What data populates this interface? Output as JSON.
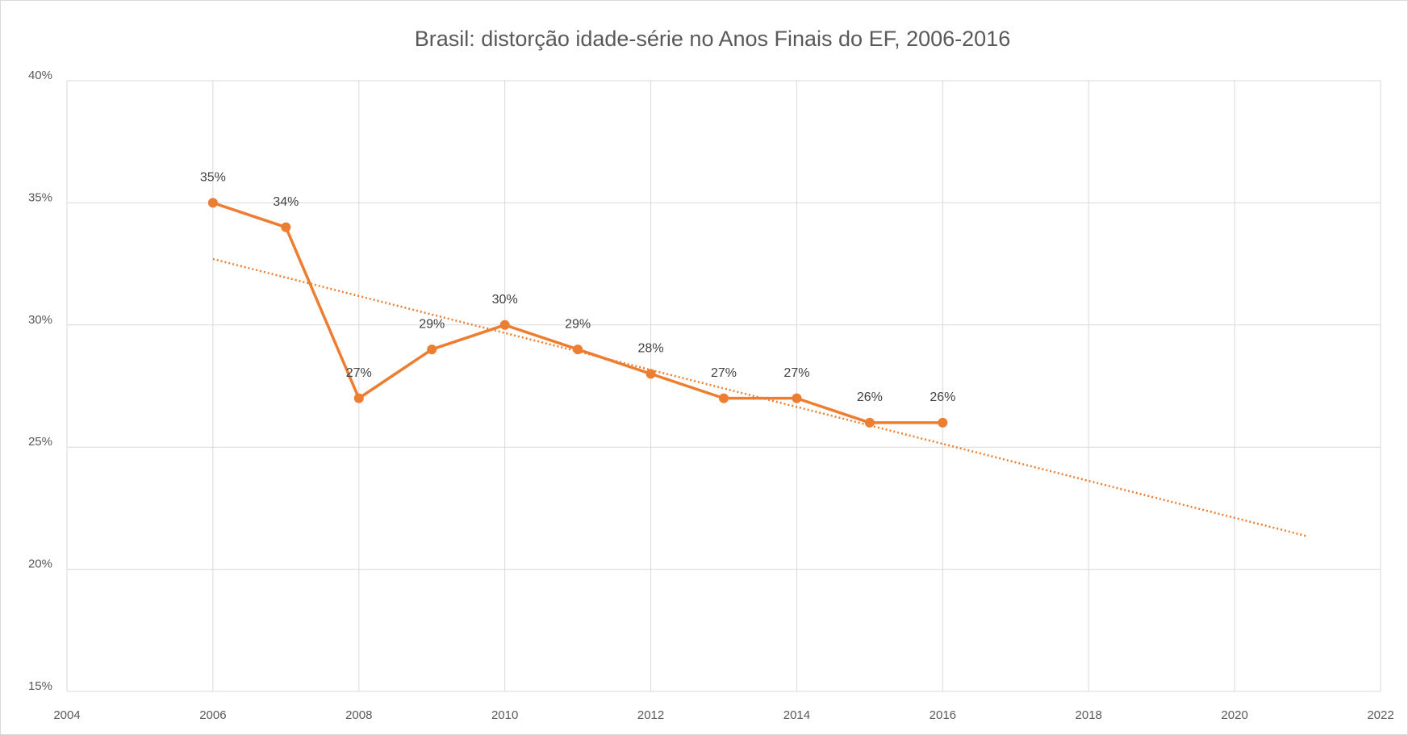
{
  "chart_data": {
    "type": "line",
    "title": "Brasil: distorção idade-série no Anos Finais do EF, 2006-2016",
    "x": [
      2006,
      2007,
      2008,
      2009,
      2010,
      2011,
      2012,
      2013,
      2014,
      2015,
      2016
    ],
    "values": [
      35,
      34,
      27,
      29,
      30,
      29,
      28,
      27,
      27,
      26,
      26
    ],
    "value_labels": [
      "35%",
      "34%",
      "27%",
      "29%",
      "30%",
      "29%",
      "28%",
      "27%",
      "27%",
      "26%",
      "26%"
    ],
    "color": "#ed7d31",
    "trendline": {
      "x": [
        2006,
        2021
      ],
      "values": [
        32.7,
        21.35
      ],
      "style": "dotted"
    },
    "xlim": [
      2004,
      2022
    ],
    "xticks": [
      2004,
      2006,
      2008,
      2010,
      2012,
      2014,
      2016,
      2018,
      2020,
      2022
    ],
    "ylim": [
      15,
      40
    ],
    "yticks": [
      {
        "value": 15,
        "label": "15%"
      },
      {
        "value": 20,
        "label": "20%"
      },
      {
        "value": 25,
        "label": "25%"
      },
      {
        "value": 30,
        "label": "30%"
      },
      {
        "value": 35,
        "label": "35%"
      },
      {
        "value": 40,
        "label": "40%"
      }
    ],
    "grid": true
  }
}
